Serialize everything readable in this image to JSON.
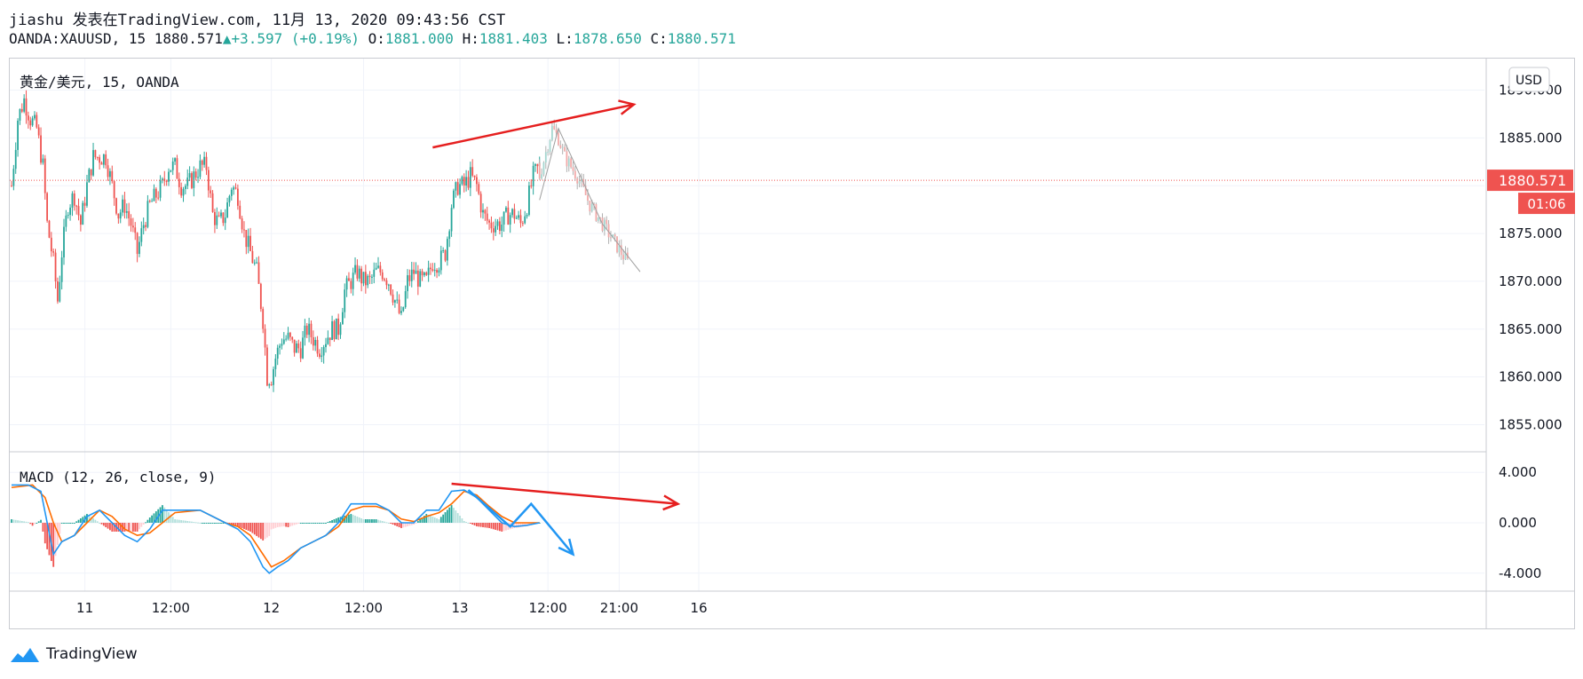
{
  "header": {
    "line1": "jiashu 发表在TradingView.com, 11月 13, 2020 09:43:56 CST",
    "symbol": "OANDA:XAUUSD, 15",
    "last": "1880.571",
    "up_arrow": "▲",
    "change": "+3.597 (+0.19%)",
    "o_label": "O:",
    "o": "1881.000",
    "h_label": "H:",
    "h": "1881.403",
    "l_label": "L:",
    "l": "1878.650",
    "c_label": "C:",
    "c": "1880.571"
  },
  "footer": {
    "brand": "TradingView",
    "logo_icon": "tradingview-cloud-icon"
  },
  "colors": {
    "up": "#26a69a",
    "down": "#ef5350",
    "projection": "#9e9e9e",
    "macd_line": "#2196f3",
    "signal_line": "#ff6d00",
    "hist_up_strong": "#26a69a",
    "hist_up_weak": "#b2dfdb",
    "hist_down_strong": "#ef5350",
    "hist_down_weak": "#ffcdd2",
    "annotation_red": "#e51f1f",
    "annotation_blue": "#2196f3",
    "price_label_bg": "#ef5350"
  },
  "chart_data": [
    {
      "type": "candlestick",
      "title": "黄金/美元, 15, OANDA",
      "currency_button": "USD",
      "ylim": [
        1853,
        1892
      ],
      "yticks": [
        "1890.000",
        "1885.000",
        "1880.000",
        "1875.000",
        "1870.000",
        "1865.000",
        "1860.000",
        "1855.000"
      ],
      "yvalues": [
        1890,
        1885,
        1880,
        1875,
        1870,
        1865,
        1860,
        1855
      ],
      "last_price": 1880.571,
      "last_price_label": "1880.571",
      "countdown": "01:06",
      "xticks": [
        "11",
        "12:00",
        "12",
        "12:00",
        "13",
        "12:00",
        "21:00",
        "16"
      ],
      "xtick_bar_index": [
        35,
        76,
        124,
        168,
        214,
        256,
        290,
        328
      ],
      "bar_count": 342,
      "close_path": [
        [
          0,
          1880
        ],
        [
          3,
          1887
        ],
        [
          6,
          1889
        ],
        [
          9,
          1887
        ],
        [
          12,
          1886
        ],
        [
          15,
          1882
        ],
        [
          17,
          1876
        ],
        [
          20,
          1872
        ],
        [
          22,
          1868
        ],
        [
          24,
          1873
        ],
        [
          27,
          1878
        ],
        [
          30,
          1879
        ],
        [
          33,
          1876
        ],
        [
          36,
          1880
        ],
        [
          39,
          1883
        ],
        [
          42,
          1883
        ],
        [
          45,
          1883
        ],
        [
          48,
          1880
        ],
        [
          51,
          1877
        ],
        [
          54,
          1878
        ],
        [
          57,
          1876
        ],
        [
          60,
          1873
        ],
        [
          63,
          1876
        ],
        [
          66,
          1878
        ],
        [
          69,
          1879
        ],
        [
          72,
          1880
        ],
        [
          75,
          1882
        ],
        [
          78,
          1882
        ],
        [
          81,
          1880
        ],
        [
          84,
          1880
        ],
        [
          87,
          1881
        ],
        [
          90,
          1882
        ],
        [
          93,
          1882
        ],
        [
          96,
          1877
        ],
        [
          99,
          1876
        ],
        [
          102,
          1877
        ],
        [
          105,
          1880
        ],
        [
          108,
          1879
        ],
        [
          111,
          1875
        ],
        [
          114,
          1873
        ],
        [
          117,
          1871
        ],
        [
          120,
          1866
        ],
        [
          122,
          1860
        ],
        [
          124,
          1860
        ],
        [
          126,
          1862
        ],
        [
          129,
          1864
        ],
        [
          132,
          1864
        ],
        [
          135,
          1863
        ],
        [
          138,
          1863
        ],
        [
          141,
          1865
        ],
        [
          144,
          1864
        ],
        [
          147,
          1863
        ],
        [
          150,
          1864
        ],
        [
          153,
          1865
        ],
        [
          156,
          1865
        ],
        [
          159,
          1869
        ],
        [
          162,
          1870
        ],
        [
          165,
          1871
        ],
        [
          168,
          1870
        ],
        [
          171,
          1870
        ],
        [
          174,
          1871
        ],
        [
          177,
          1871
        ],
        [
          180,
          1870
        ],
        [
          183,
          1868
        ],
        [
          186,
          1866
        ],
        [
          189,
          1870
        ],
        [
          192,
          1871
        ],
        [
          195,
          1870
        ],
        [
          198,
          1870
        ],
        [
          201,
          1872
        ],
        [
          204,
          1872
        ],
        [
          207,
          1873
        ],
        [
          210,
          1878
        ],
        [
          213,
          1880
        ],
        [
          216,
          1880
        ],
        [
          219,
          1881
        ],
        [
          222,
          1880
        ],
        [
          225,
          1877
        ],
        [
          228,
          1876
        ],
        [
          231,
          1876
        ],
        [
          234,
          1876
        ],
        [
          237,
          1877
        ],
        [
          240,
          1877
        ],
        [
          243,
          1876
        ],
        [
          246,
          1878
        ],
        [
          249,
          1881
        ],
        [
          252,
          1882
        ]
      ],
      "projection_path": [
        [
          252,
          1881
        ],
        [
          258,
          1886
        ],
        [
          261,
          1885
        ],
        [
          264,
          1883
        ],
        [
          270,
          1881
        ],
        [
          276,
          1878
        ],
        [
          279,
          1877
        ],
        [
          282,
          1876
        ],
        [
          288,
          1874
        ],
        [
          294,
          1872
        ]
      ],
      "projection_line": [
        [
          252,
          1878.5
        ],
        [
          261,
          1886
        ],
        [
          282,
          1876
        ],
        [
          300,
          1871
        ]
      ],
      "annotations": [
        {
          "kind": "arrow",
          "color": "red",
          "from": [
            201,
            1884
          ],
          "to": [
            297,
            1888.5
          ]
        }
      ]
    },
    {
      "type": "line",
      "title": "MACD (12, 26, close, 9)",
      "ylim": [
        -5,
        5
      ],
      "yticks": [
        "4.000",
        "0.000",
        "-4.000"
      ],
      "yvalues": [
        4,
        0,
        -4
      ],
      "series": [
        {
          "name": "MACD",
          "values": [
            [
              0,
              3
            ],
            [
              8,
              3
            ],
            [
              14,
              2.5
            ],
            [
              17,
              0
            ],
            [
              20,
              -2.5
            ],
            [
              24,
              -1.5
            ],
            [
              30,
              -1
            ],
            [
              36,
              0.5
            ],
            [
              42,
              1
            ],
            [
              48,
              0
            ],
            [
              54,
              -1
            ],
            [
              60,
              -1.5
            ],
            [
              66,
              -0.5
            ],
            [
              72,
              1
            ],
            [
              78,
              1
            ],
            [
              84,
              1
            ],
            [
              90,
              1
            ],
            [
              96,
              0.5
            ],
            [
              102,
              0
            ],
            [
              108,
              -0.5
            ],
            [
              114,
              -1.5
            ],
            [
              117,
              -2.5
            ],
            [
              120,
              -3.5
            ],
            [
              123,
              -4
            ],
            [
              127,
              -3.5
            ],
            [
              132,
              -3
            ],
            [
              138,
              -2
            ],
            [
              144,
              -1.5
            ],
            [
              150,
              -1
            ],
            [
              156,
              0
            ],
            [
              162,
              1.5
            ],
            [
              168,
              1.5
            ],
            [
              174,
              1.5
            ],
            [
              180,
              1
            ],
            [
              186,
              0
            ],
            [
              192,
              0
            ],
            [
              198,
              1
            ],
            [
              204,
              1
            ],
            [
              210,
              2.5
            ],
            [
              216,
              2.6
            ],
            [
              222,
              2
            ],
            [
              228,
              1
            ],
            [
              234,
              0
            ],
            [
              240,
              -0.3
            ],
            [
              246,
              -0.2
            ],
            [
              252,
              0
            ]
          ]
        },
        {
          "name": "Signal",
          "values": [
            [
              0,
              2.8
            ],
            [
              10,
              3
            ],
            [
              16,
              2
            ],
            [
              20,
              0
            ],
            [
              24,
              -1.5
            ],
            [
              30,
              -1
            ],
            [
              36,
              0
            ],
            [
              42,
              1
            ],
            [
              48,
              0.5
            ],
            [
              54,
              -0.5
            ],
            [
              60,
              -1
            ],
            [
              66,
              -0.8
            ],
            [
              72,
              0
            ],
            [
              78,
              0.8
            ],
            [
              84,
              0.9
            ],
            [
              90,
              1
            ],
            [
              96,
              0.5
            ],
            [
              102,
              0
            ],
            [
              108,
              -0.3
            ],
            [
              114,
              -1
            ],
            [
              120,
              -2.5
            ],
            [
              124,
              -3.5
            ],
            [
              130,
              -3
            ],
            [
              138,
              -2
            ],
            [
              144,
              -1.5
            ],
            [
              150,
              -1
            ],
            [
              156,
              -0.3
            ],
            [
              162,
              1
            ],
            [
              168,
              1.3
            ],
            [
              174,
              1.3
            ],
            [
              180,
              1
            ],
            [
              186,
              0.3
            ],
            [
              192,
              0.1
            ],
            [
              198,
              0.5
            ],
            [
              204,
              0.8
            ],
            [
              210,
              1.5
            ],
            [
              216,
              2.5
            ],
            [
              222,
              2.2
            ],
            [
              228,
              1.3
            ],
            [
              234,
              0.5
            ],
            [
              240,
              0
            ],
            [
              246,
              0
            ],
            [
              252,
              0
            ]
          ]
        }
      ],
      "annotations": [
        {
          "kind": "arrow",
          "color": "red",
          "from": [
            210,
            3.1
          ],
          "to": [
            318,
            1.5
          ]
        },
        {
          "kind": "polyline_arrow",
          "color": "blue",
          "points": [
            [
              218,
              2.6
            ],
            [
              238,
              -0.3
            ],
            [
              248,
              1.5
            ],
            [
              268,
              -2.5
            ]
          ]
        }
      ]
    }
  ]
}
